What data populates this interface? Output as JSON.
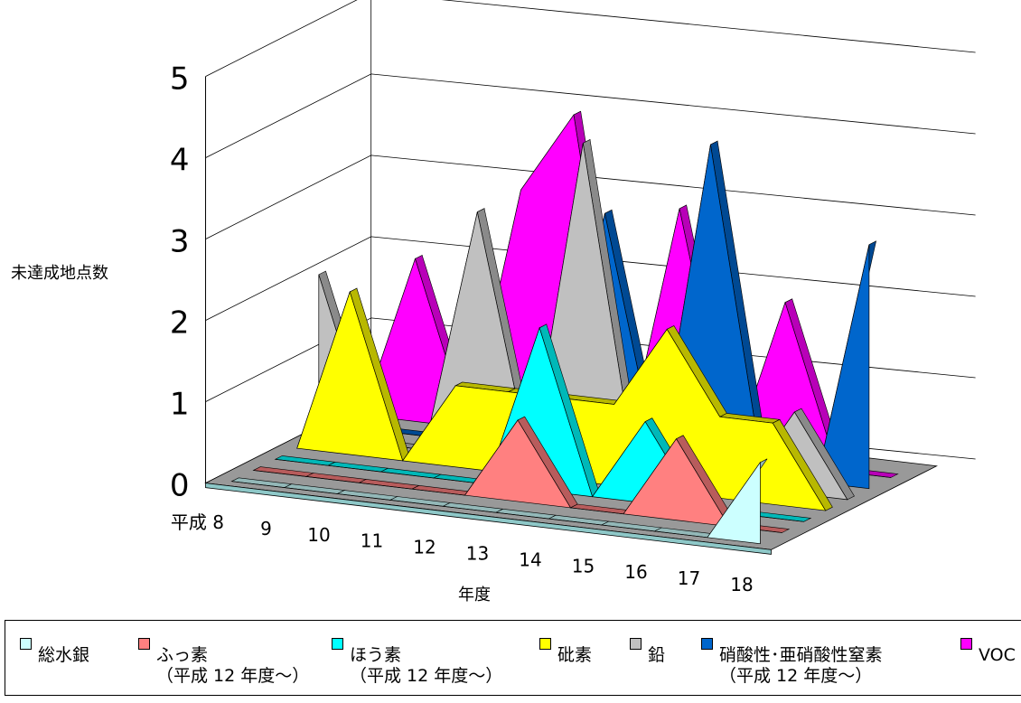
{
  "chart_data": {
    "type": "area",
    "title": "",
    "ylabel": "未達成地点数",
    "xlabel": "年度",
    "ylim": [
      0,
      5
    ],
    "y_ticks": [
      "0",
      "1",
      "2",
      "3",
      "4",
      "5"
    ],
    "categories": [
      "平成 8",
      "9",
      "10",
      "11",
      "12",
      "13",
      "14",
      "15",
      "16",
      "17",
      "18"
    ],
    "series": [
      {
        "name": "総水銀",
        "color": "#ccffff",
        "values": [
          0,
          0,
          0,
          0,
          0,
          0,
          0,
          0,
          0,
          0,
          1
        ]
      },
      {
        "name": "ふっ素 (平成 12 年度～)",
        "color": "#ff8080",
        "values": [
          0,
          0,
          0,
          0,
          0,
          1,
          0,
          0,
          1,
          0,
          0
        ]
      },
      {
        "name": "ほう素 (平成 12 年度～)",
        "color": "#00ffff",
        "values": [
          0,
          0,
          0,
          0,
          0,
          2,
          0,
          1,
          0,
          0,
          0
        ]
      },
      {
        "name": "砒素",
        "color": "#ffff00",
        "values": [
          0,
          2,
          0,
          1,
          1,
          1,
          1,
          2,
          1,
          1,
          0
        ]
      },
      {
        "name": "鉛",
        "color": "#c0c0c0",
        "values": [
          2,
          0,
          0,
          3,
          0,
          4,
          0,
          0,
          0,
          1,
          0
        ]
      },
      {
        "name": "硝酸性･亜硝酸性窒素 (平成 12 年度～)",
        "color": "#0066cc",
        "values": [
          0,
          0,
          0,
          0,
          0,
          3,
          0,
          4,
          0,
          0,
          3
        ]
      },
      {
        "name": "VOC",
        "color": "#ff00ff",
        "values": [
          0,
          2,
          0,
          3,
          4,
          0,
          3,
          0,
          2,
          0,
          0
        ]
      }
    ],
    "grid": true,
    "legend_position": "bottom"
  },
  "legend": [
    {
      "label": "総水銀",
      "sub": ""
    },
    {
      "label": "ふっ素",
      "sub": "（平成 12 年度～）"
    },
    {
      "label": "ほう素",
      "sub": "（平成 12 年度～）"
    },
    {
      "label": "砒素",
      "sub": ""
    },
    {
      "label": "鉛",
      "sub": ""
    },
    {
      "label": "硝酸性･亜硝酸性窒素",
      "sub": "（平成 12 年度～）"
    },
    {
      "label": "VOC",
      "sub": ""
    }
  ]
}
